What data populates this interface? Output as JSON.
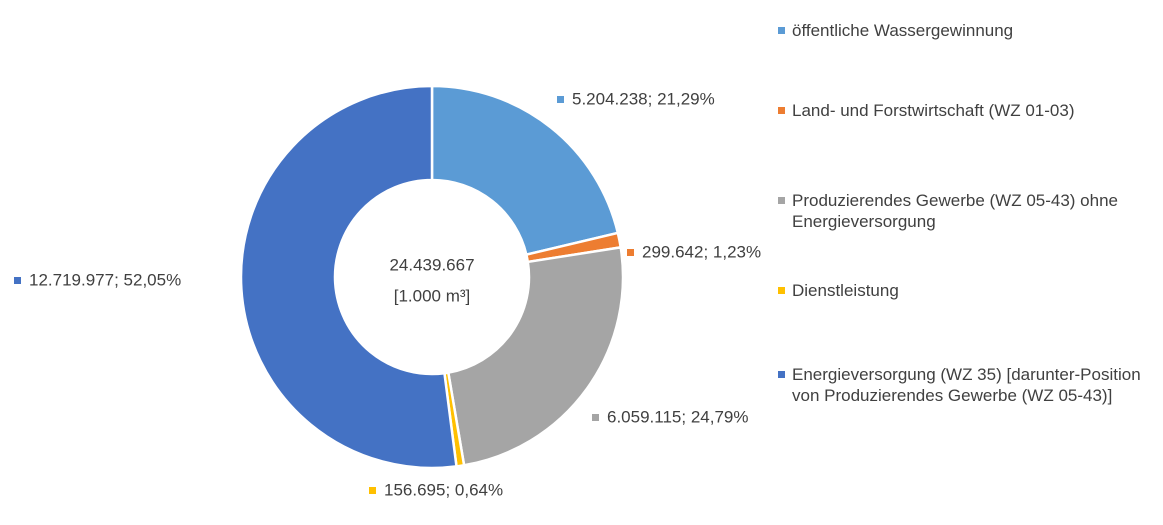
{
  "chart_data": {
    "type": "donut",
    "center_text": [
      "24.439.667",
      "[1.000 m³]"
    ],
    "categories": [
      "öffentliche Wassergewinnung",
      "Land- und Forstwirtschaft (WZ 01-03)",
      "Produzierendes Gewerbe (WZ 05-43) ohne Energieversorgung",
      "Dienstleistung",
      "Energieversorgung (WZ 35) [darunter-Position von Produzierendes Gewerbe (WZ 05-43)]"
    ],
    "values": [
      5204238,
      299642,
      6059115,
      156695,
      12719977
    ],
    "value_labels": [
      "5.204.238; 21,29%",
      "299.642; 1,23%",
      "6.059.115; 24,79%",
      "156.695; 0,64%",
      "12.719.977; 52,05%"
    ],
    "colors": [
      "#5b9bd5",
      "#ed7d31",
      "#a5a5a5",
      "#ffc000",
      "#4472c4"
    ],
    "legend": "right"
  }
}
